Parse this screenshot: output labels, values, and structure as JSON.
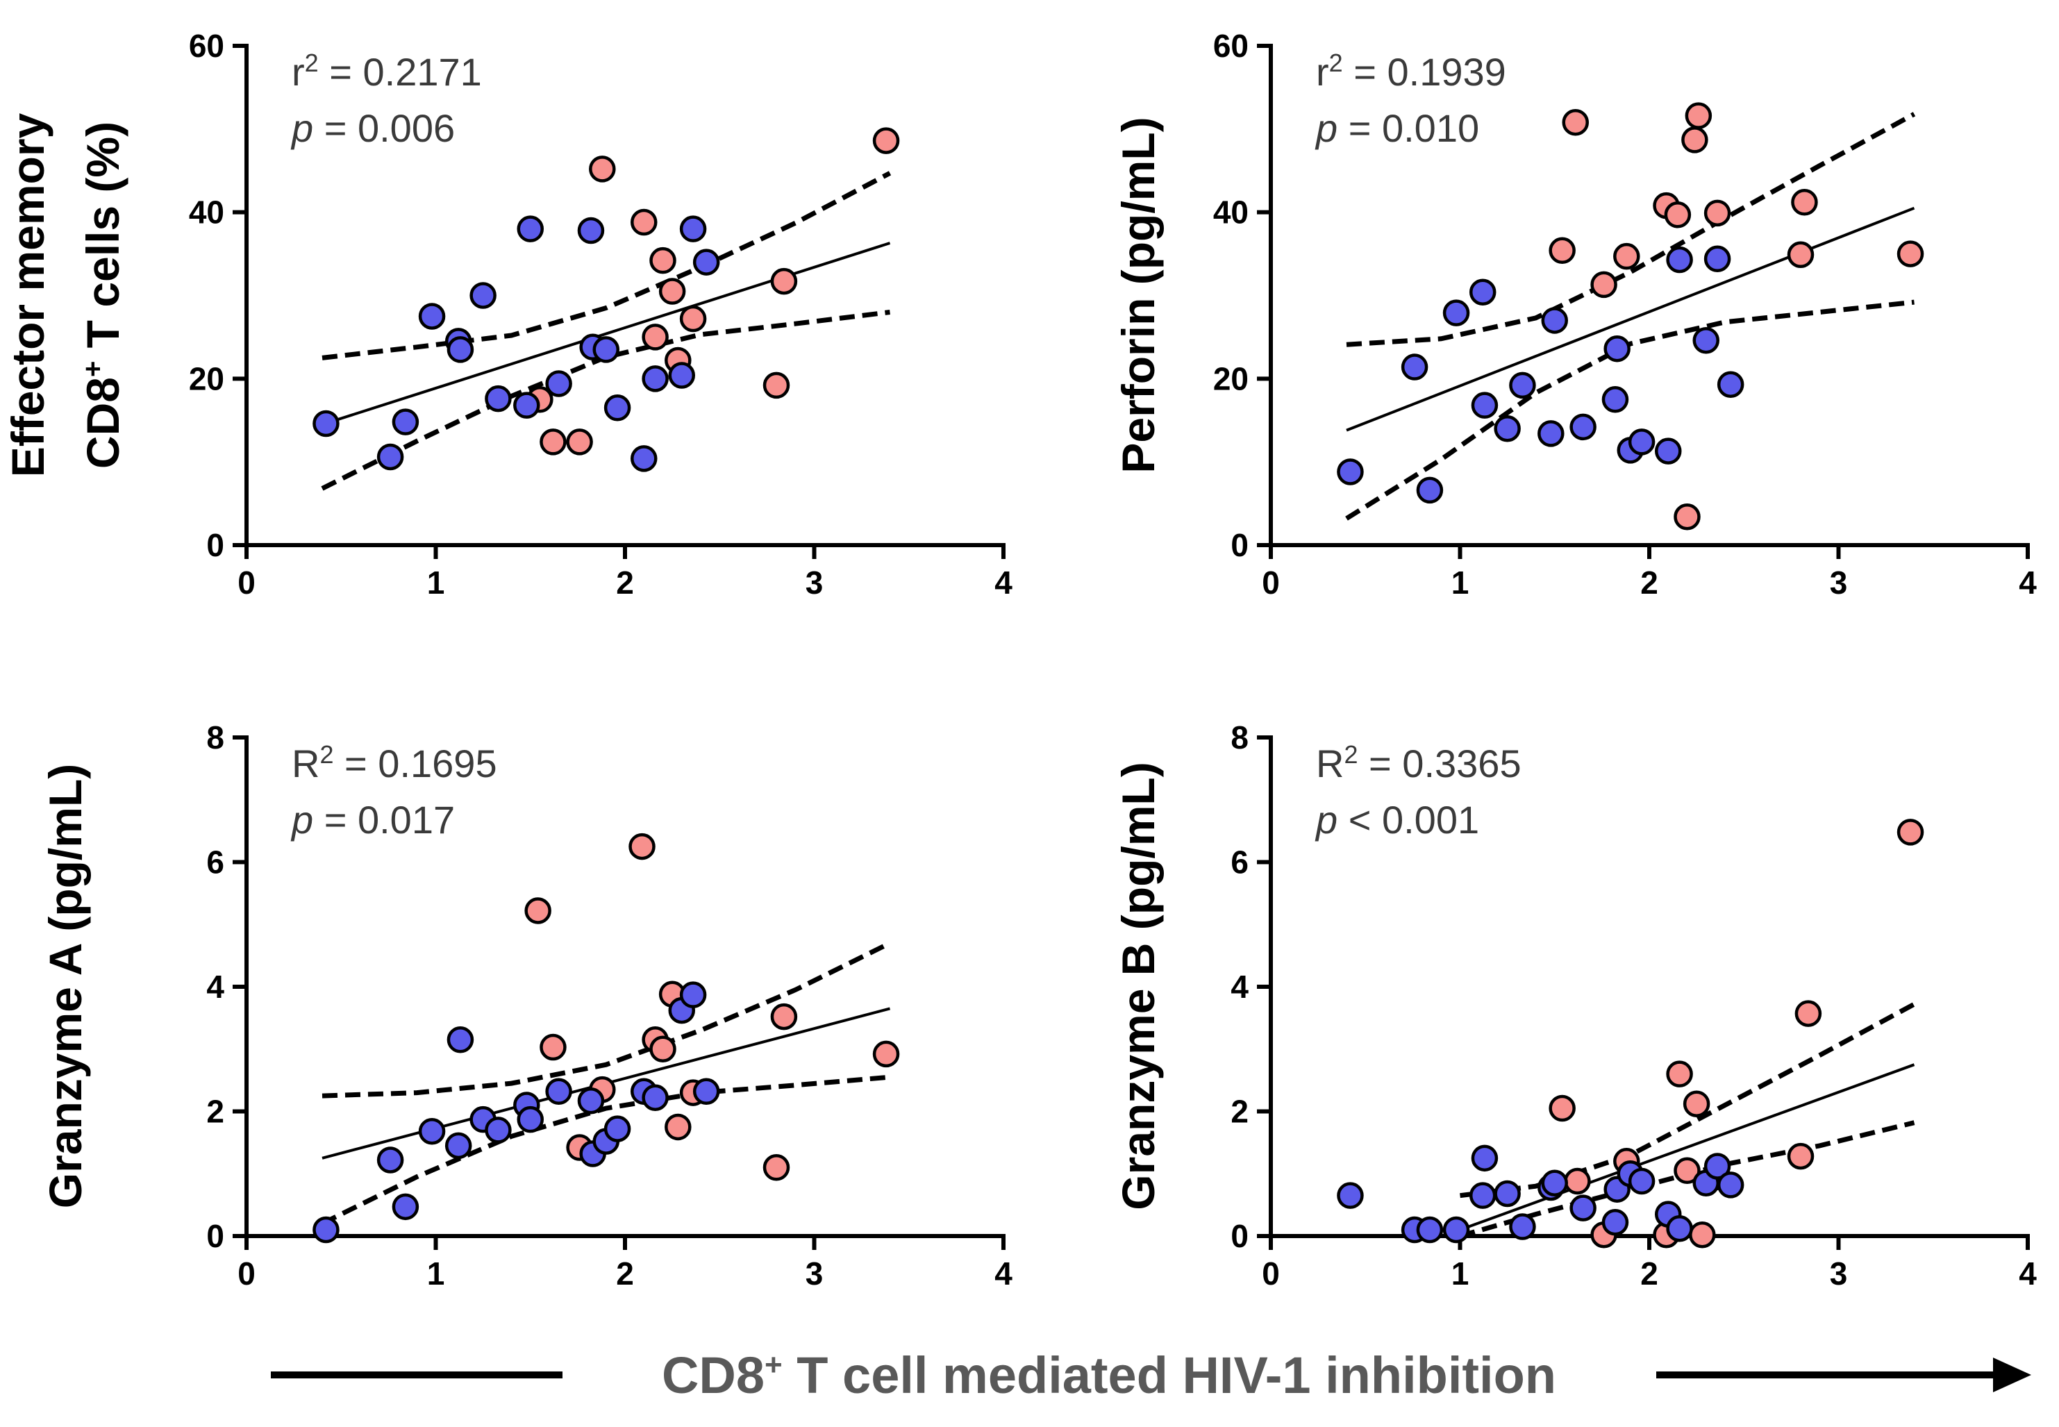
{
  "colors": {
    "group_a": "#f7908d",
    "group_b": "#5b5bea",
    "axis": "#000000",
    "stats": "#3a3a3a",
    "footer": "#595959"
  },
  "footer": {
    "label_prefix": "CD8",
    "label_sup": "+",
    "label_suffix": " T cell mediated HIV-1 inhibition"
  },
  "chart_data": [
    {
      "type": "scatter",
      "panel": "top-left",
      "ylabel_lines": [
        {
          "text": "Effector memory"
        },
        {
          "text": "CD8",
          "sup": "+",
          "after": " T cells (%)"
        }
      ],
      "xlim": [
        0,
        4
      ],
      "ylim": [
        0,
        60
      ],
      "xticks": [
        0,
        1,
        2,
        3,
        4
      ],
      "yticks": [
        0,
        20,
        40,
        60
      ],
      "stat_label": "r",
      "stat_value": "= 0.2171",
      "p_symbol": "p",
      "p_value": "= 0.006",
      "fit": {
        "x": [
          0.4,
          3.4
        ],
        "y": [
          14.5,
          36.3
        ]
      },
      "ci_upper": {
        "x": [
          0.4,
          0.9,
          1.4,
          1.9,
          2.4,
          2.9,
          3.4
        ],
        "y": [
          22.5,
          23.8,
          25.2,
          28.5,
          33.4,
          38.7,
          44.7
        ]
      },
      "ci_lower": {
        "x": [
          0.4,
          0.9,
          1.4,
          1.9,
          2.4,
          2.9,
          3.4
        ],
        "y": [
          6.8,
          12.5,
          17.9,
          22.6,
          25.3,
          26.6,
          28.0
        ]
      },
      "series": [
        {
          "name": "pink",
          "color": "#f7908d",
          "points": [
            [
              1.88,
              45.2
            ],
            [
              2.1,
              38.8
            ],
            [
              2.2,
              34.2
            ],
            [
              2.25,
              30.5
            ],
            [
              2.36,
              27.2
            ],
            [
              2.16,
              25.0
            ],
            [
              2.28,
              22.2
            ],
            [
              1.55,
              17.5
            ],
            [
              1.62,
              12.4
            ],
            [
              1.76,
              12.4
            ],
            [
              2.84,
              31.7
            ],
            [
              2.8,
              19.2
            ],
            [
              3.38,
              48.6
            ]
          ]
        },
        {
          "name": "blue",
          "color": "#5b5bea",
          "points": [
            [
              0.42,
              14.6
            ],
            [
              0.76,
              10.6
            ],
            [
              0.84,
              14.8
            ],
            [
              0.98,
              27.5
            ],
            [
              1.12,
              24.5
            ],
            [
              1.13,
              23.5
            ],
            [
              1.25,
              30.0
            ],
            [
              1.33,
              17.6
            ],
            [
              1.48,
              16.8
            ],
            [
              1.5,
              38.0
            ],
            [
              1.65,
              19.4
            ],
            [
              1.82,
              37.8
            ],
            [
              1.83,
              23.8
            ],
            [
              1.9,
              23.5
            ],
            [
              1.96,
              16.5
            ],
            [
              2.1,
              10.4
            ],
            [
              2.16,
              20.0
            ],
            [
              2.3,
              20.4
            ],
            [
              2.36,
              38.0
            ],
            [
              2.43,
              34.0
            ]
          ]
        }
      ]
    },
    {
      "type": "scatter",
      "panel": "top-right",
      "ylabel_lines": [
        {
          "text": "Perforin (pg/mL)"
        }
      ],
      "xlim": [
        0,
        4
      ],
      "ylim": [
        0,
        60
      ],
      "xticks": [
        0,
        1,
        2,
        3,
        4
      ],
      "yticks": [
        0,
        20,
        40,
        60
      ],
      "stat_label": "r",
      "stat_value": "= 0.1939",
      "p_symbol": "p",
      "p_value": "= 0.010",
      "fit": {
        "x": [
          0.4,
          3.4
        ],
        "y": [
          13.8,
          40.5
        ]
      },
      "ci_upper": {
        "x": [
          0.4,
          0.9,
          1.4,
          1.9,
          2.4,
          2.9,
          3.4
        ],
        "y": [
          24.1,
          24.8,
          27.3,
          32.8,
          39.3,
          45.6,
          51.8
        ]
      },
      "ci_lower": {
        "x": [
          0.4,
          0.9,
          1.4,
          1.9,
          2.4,
          2.9,
          3.4
        ],
        "y": [
          3.2,
          10.3,
          18.3,
          24.2,
          26.8,
          28.0,
          29.2
        ]
      },
      "series": [
        {
          "name": "pink",
          "color": "#f7908d",
          "points": [
            [
              1.61,
              50.8
            ],
            [
              2.26,
              51.6
            ],
            [
              2.24,
              48.7
            ],
            [
              2.09,
              40.8
            ],
            [
              2.15,
              39.7
            ],
            [
              2.36,
              39.9
            ],
            [
              1.54,
              35.4
            ],
            [
              1.88,
              34.7
            ],
            [
              1.76,
              31.3
            ],
            [
              2.2,
              3.4
            ],
            [
              2.82,
              41.2
            ],
            [
              2.8,
              34.9
            ],
            [
              3.38,
              35.0
            ]
          ]
        },
        {
          "name": "blue",
          "color": "#5b5bea",
          "points": [
            [
              0.42,
              8.8
            ],
            [
              0.76,
              21.4
            ],
            [
              0.84,
              6.6
            ],
            [
              0.98,
              27.9
            ],
            [
              1.12,
              30.4
            ],
            [
              1.13,
              16.8
            ],
            [
              1.25,
              14.0
            ],
            [
              1.33,
              19.2
            ],
            [
              1.48,
              13.4
            ],
            [
              1.5,
              27.0
            ],
            [
              1.65,
              14.2
            ],
            [
              1.82,
              17.5
            ],
            [
              1.83,
              23.6
            ],
            [
              1.9,
              11.4
            ],
            [
              1.96,
              12.4
            ],
            [
              2.1,
              11.3
            ],
            [
              2.16,
              34.3
            ],
            [
              2.3,
              24.6
            ],
            [
              2.36,
              34.4
            ],
            [
              2.43,
              19.3
            ]
          ]
        }
      ]
    },
    {
      "type": "scatter",
      "panel": "bottom-left",
      "ylabel_lines": [
        {
          "text": "Granzyme A (pg/mL)"
        }
      ],
      "xlim": [
        0,
        4
      ],
      "ylim": [
        0,
        8
      ],
      "xticks": [
        0,
        1,
        2,
        3,
        4
      ],
      "yticks": [
        0,
        2,
        4,
        6,
        8
      ],
      "stat_label": "R",
      "stat_value": "= 0.1695",
      "p_symbol": "p",
      "p_value": "= 0.017",
      "fit": {
        "x": [
          0.4,
          3.4
        ],
        "y": [
          1.25,
          3.65
        ]
      },
      "ci_upper": {
        "x": [
          0.4,
          0.9,
          1.4,
          1.9,
          2.4,
          2.9,
          3.4
        ],
        "y": [
          2.25,
          2.3,
          2.45,
          2.75,
          3.3,
          3.95,
          4.7
        ]
      },
      "ci_lower": {
        "x": [
          0.4,
          0.9,
          1.4,
          1.9,
          2.4,
          2.9,
          3.4
        ],
        "y": [
          0.2,
          0.95,
          1.6,
          2.05,
          2.3,
          2.42,
          2.55
        ]
      },
      "series": [
        {
          "name": "pink",
          "color": "#f7908d",
          "points": [
            [
              1.54,
              5.22
            ],
            [
              2.09,
              6.25
            ],
            [
              1.62,
              3.03
            ],
            [
              2.16,
              3.15
            ],
            [
              2.2,
              3.0
            ],
            [
              2.25,
              3.88
            ],
            [
              2.28,
              1.75
            ],
            [
              2.36,
              2.3
            ],
            [
              1.76,
              1.42
            ],
            [
              1.88,
              2.35
            ],
            [
              2.84,
              3.52
            ],
            [
              2.8,
              1.1
            ],
            [
              3.38,
              2.92
            ]
          ]
        },
        {
          "name": "blue",
          "color": "#5b5bea",
          "points": [
            [
              0.42,
              0.1
            ],
            [
              0.76,
              1.22
            ],
            [
              0.84,
              0.47
            ],
            [
              0.98,
              1.68
            ],
            [
              1.12,
              1.45
            ],
            [
              1.13,
              3.15
            ],
            [
              1.25,
              1.87
            ],
            [
              1.33,
              1.7
            ],
            [
              1.48,
              2.1
            ],
            [
              1.5,
              1.87
            ],
            [
              1.65,
              2.32
            ],
            [
              1.82,
              2.17
            ],
            [
              1.83,
              1.32
            ],
            [
              1.9,
              1.52
            ],
            [
              1.96,
              1.72
            ],
            [
              2.1,
              2.32
            ],
            [
              2.16,
              2.22
            ],
            [
              2.3,
              3.62
            ],
            [
              2.36,
              3.87
            ],
            [
              2.43,
              2.32
            ]
          ]
        }
      ]
    },
    {
      "type": "scatter",
      "panel": "bottom-right",
      "ylabel_lines": [
        {
          "text": "Granzyme B (pg/mL)"
        }
      ],
      "xlim": [
        0,
        4
      ],
      "ylim": [
        0,
        8
      ],
      "xticks": [
        0,
        1,
        2,
        3,
        4
      ],
      "yticks": [
        0,
        2,
        4,
        6,
        8
      ],
      "stat_label": "R",
      "stat_value": "= 0.3365",
      "p_symbol": "p",
      "p_value": "< 0.001",
      "fit": {
        "x": [
          1.0,
          3.4
        ],
        "y": [
          0.1,
          2.75
        ]
      },
      "ci_upper": {
        "x": [
          1.0,
          1.4,
          1.9,
          2.4,
          2.9,
          3.4
        ],
        "y": [
          0.65,
          0.8,
          1.3,
          2.1,
          2.9,
          3.72
        ]
      },
      "ci_lower": {
        "x": [
          1.0,
          1.4,
          1.9,
          2.4,
          2.9,
          3.4
        ],
        "y": [
          0.0,
          0.35,
          0.75,
          1.15,
          1.45,
          1.82
        ]
      },
      "series": [
        {
          "name": "pink",
          "color": "#f7908d",
          "points": [
            [
              1.54,
              2.05
            ],
            [
              1.62,
              0.88
            ],
            [
              1.76,
              0.02
            ],
            [
              1.88,
              1.2
            ],
            [
              2.09,
              0.02
            ],
            [
              2.16,
              2.6
            ],
            [
              2.2,
              1.05
            ],
            [
              2.25,
              2.12
            ],
            [
              2.28,
              0.02
            ],
            [
              2.36,
              0.95
            ],
            [
              2.84,
              3.57
            ],
            [
              2.8,
              1.28
            ],
            [
              3.38,
              6.48
            ]
          ]
        },
        {
          "name": "blue",
          "color": "#5b5bea",
          "points": [
            [
              0.42,
              0.65
            ],
            [
              0.76,
              0.1
            ],
            [
              0.84,
              0.1
            ],
            [
              0.98,
              0.1
            ],
            [
              1.12,
              0.65
            ],
            [
              1.13,
              1.25
            ],
            [
              1.25,
              0.68
            ],
            [
              1.33,
              0.15
            ],
            [
              1.48,
              0.78
            ],
            [
              1.5,
              0.85
            ],
            [
              1.65,
              0.45
            ],
            [
              1.82,
              0.22
            ],
            [
              1.83,
              0.75
            ],
            [
              1.9,
              1.0
            ],
            [
              1.96,
              0.88
            ],
            [
              2.1,
              0.35
            ],
            [
              2.16,
              0.12
            ],
            [
              2.3,
              0.85
            ],
            [
              2.36,
              1.12
            ],
            [
              2.43,
              0.82
            ]
          ]
        }
      ]
    }
  ]
}
